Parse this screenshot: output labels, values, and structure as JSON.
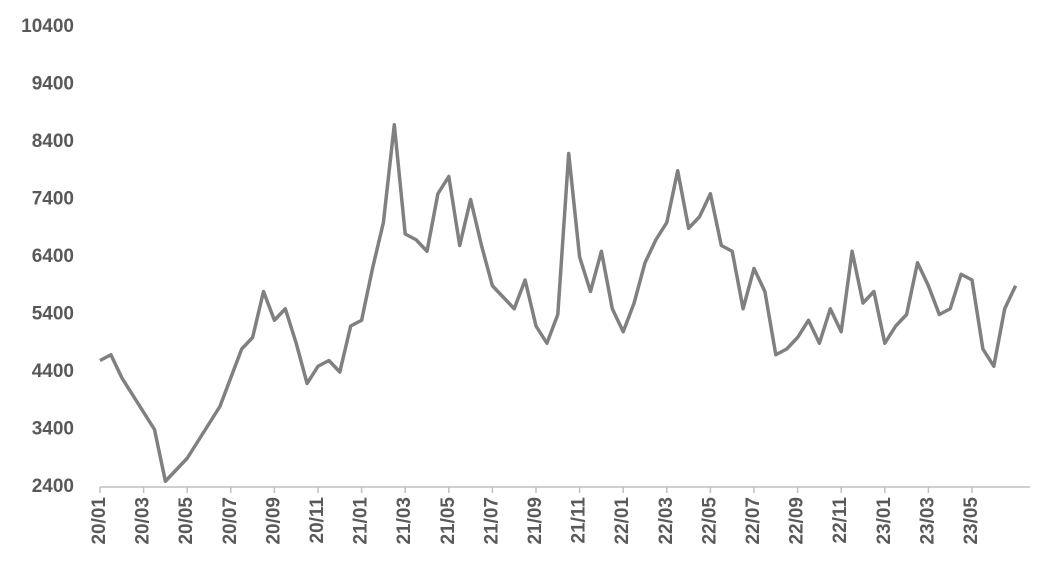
{
  "chart_data": {
    "type": "line",
    "categories": [
      "20/01",
      null,
      null,
      null,
      "20/03",
      null,
      null,
      null,
      "20/05",
      null,
      null,
      null,
      "20/07",
      null,
      null,
      null,
      "20/09",
      null,
      null,
      null,
      "20/11",
      null,
      null,
      null,
      "21/01",
      null,
      null,
      null,
      "21/03",
      null,
      null,
      null,
      "21/05",
      null,
      null,
      null,
      "21/07",
      null,
      null,
      null,
      "21/09",
      null,
      null,
      null,
      "21/11",
      null,
      null,
      null,
      "22/01",
      null,
      null,
      null,
      "22/03",
      null,
      null,
      null,
      "22/05",
      null,
      null,
      null,
      "22/07",
      null,
      null,
      null,
      "22/09",
      null,
      null,
      null,
      "22/11",
      null,
      null,
      null,
      "23/01",
      null,
      null,
      null,
      "23/03",
      null,
      null,
      null,
      "23/05",
      null,
      null,
      null,
      null
    ],
    "series": [
      {
        "color": "#808080",
        "values": [
          4600,
          4700,
          4300,
          4000,
          3700,
          3400,
          2500,
          2700,
          2900,
          3200,
          3500,
          3800,
          4300,
          4800,
          5000,
          5800,
          5300,
          5500,
          4900,
          4200,
          4500,
          4600,
          4400,
          5200,
          5300,
          6200,
          7000,
          8700,
          6800,
          6700,
          6500,
          7500,
          7800,
          6600,
          7400,
          6600,
          5900,
          5700,
          5500,
          6000,
          5200,
          4900,
          5400,
          8200,
          6400,
          5800,
          6500,
          5500,
          5100,
          5600,
          6300,
          6700,
          7000,
          7900,
          6900,
          7100,
          7500,
          6600,
          6500,
          5500,
          6200,
          5800,
          4700,
          4800,
          5000,
          5300,
          4900,
          5500,
          5100,
          6500,
          5600,
          5800,
          4900,
          5200,
          5400,
          6300,
          5900,
          5400,
          5500,
          6100,
          6000,
          4800,
          4500,
          5500,
          5900
        ]
      }
    ],
    "ylim": [
      2400,
      10400
    ],
    "yticks": [
      2400,
      3400,
      4400,
      5400,
      6400,
      7400,
      8400,
      9400,
      10400
    ]
  }
}
